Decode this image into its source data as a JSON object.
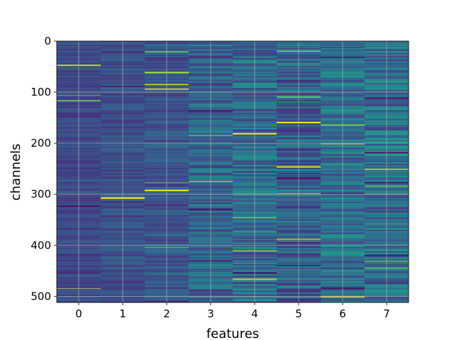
{
  "chart_data": {
    "type": "heatmap",
    "title": "",
    "xlabel": "features",
    "ylabel": "channels",
    "x_ticks": [
      "0",
      "1",
      "2",
      "3",
      "4",
      "5",
      "6",
      "7"
    ],
    "y_ticks": [
      "0",
      "100",
      "200",
      "300",
      "400",
      "500"
    ],
    "y_tick_values": [
      0,
      100,
      200,
      300,
      400,
      500
    ],
    "xlim": [
      -0.5,
      7.5
    ],
    "ylim": [
      512,
      0
    ],
    "rows": 512,
    "columns": 8,
    "colormap": "viridis",
    "grid": true,
    "column_profile": {
      "mean": [
        0.22,
        0.24,
        0.26,
        0.33,
        0.35,
        0.3,
        0.36,
        0.38
      ],
      "spread": [
        0.08,
        0.09,
        0.11,
        0.16,
        0.18,
        0.2,
        0.18,
        0.18
      ]
    }
  }
}
